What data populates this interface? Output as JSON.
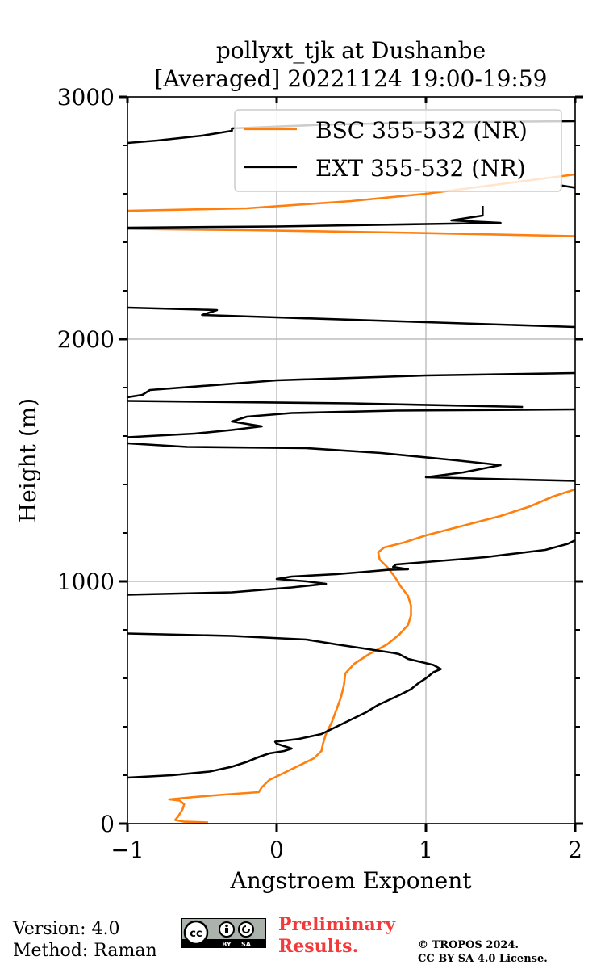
{
  "chart_data": {
    "type": "line",
    "title_line1": "pollyxt_tjk at Dushanbe",
    "title_line2": "[Averaged] 20221124 19:00-19:59",
    "xlabel": "Angstroem Exponent",
    "ylabel": "Height (m)",
    "xlim": [
      -1,
      2
    ],
    "ylim": [
      0,
      3000
    ],
    "x_ticks": [
      -1,
      0,
      1,
      2
    ],
    "x_tick_labels": [
      "−1",
      "0",
      "1",
      "2"
    ],
    "y_ticks": [
      0,
      1000,
      2000,
      3000
    ],
    "y_tick_labels": [
      "0",
      "1000",
      "2000",
      "3000"
    ],
    "grid": true,
    "legend_position": "top-right",
    "series": [
      {
        "name": "BSC 355-532 (NR)",
        "color": "#ff7f0e",
        "points": [
          [
            -0.46,
            5
          ],
          [
            -0.62,
            8
          ],
          [
            -0.68,
            15
          ],
          [
            -0.66,
            30
          ],
          [
            -0.63,
            60
          ],
          [
            -0.62,
            80
          ],
          [
            -0.65,
            95
          ],
          [
            -0.72,
            100
          ],
          [
            -0.55,
            110
          ],
          [
            -0.35,
            120
          ],
          [
            -0.12,
            130
          ],
          [
            -0.1,
            150
          ],
          [
            -0.05,
            180
          ],
          [
            0.05,
            210
          ],
          [
            0.15,
            240
          ],
          [
            0.25,
            270
          ],
          [
            0.3,
            300
          ],
          [
            0.31,
            330
          ],
          [
            0.33,
            370
          ],
          [
            0.37,
            420
          ],
          [
            0.4,
            470
          ],
          [
            0.43,
            520
          ],
          [
            0.45,
            570
          ],
          [
            0.46,
            620
          ],
          [
            0.52,
            660
          ],
          [
            0.62,
            700
          ],
          [
            0.74,
            740
          ],
          [
            0.82,
            780
          ],
          [
            0.88,
            820
          ],
          [
            0.9,
            860
          ],
          [
            0.9,
            900
          ],
          [
            0.88,
            940
          ],
          [
            0.83,
            980
          ],
          [
            0.79,
            1020
          ],
          [
            0.74,
            1060
          ],
          [
            0.69,
            1090
          ],
          [
            0.68,
            1120
          ],
          [
            0.72,
            1140
          ],
          [
            0.85,
            1160
          ],
          [
            1.0,
            1190
          ],
          [
            1.25,
            1230
          ],
          [
            1.5,
            1270
          ],
          [
            1.7,
            1310
          ],
          [
            1.85,
            1350
          ],
          [
            2.0,
            1380
          ]
        ],
        "upper_segments": [
          [
            [
              2.0,
              2425
            ],
            [
              0.8,
              2440
            ],
            [
              -0.2,
              2450
            ],
            [
              -1.0,
              2455
            ]
          ],
          [
            [
              -1.0,
              2530
            ],
            [
              -0.2,
              2540
            ],
            [
              0.5,
              2570
            ],
            [
              1.0,
              2600
            ],
            [
              1.5,
              2640
            ],
            [
              2.0,
              2680
            ]
          ]
        ]
      },
      {
        "name": "EXT 355-532 (NR)",
        "color": "#000000",
        "points": [
          [
            -1.0,
            190
          ],
          [
            -0.7,
            200
          ],
          [
            -0.45,
            215
          ],
          [
            -0.3,
            235
          ],
          [
            -0.2,
            255
          ],
          [
            -0.12,
            275
          ],
          [
            -0.05,
            290
          ],
          [
            0.05,
            300
          ],
          [
            0.1,
            310
          ],
          [
            0.0,
            330
          ],
          [
            -0.01,
            338
          ],
          [
            0.15,
            350
          ],
          [
            0.3,
            370
          ],
          [
            0.4,
            400
          ],
          [
            0.5,
            430
          ],
          [
            0.6,
            460
          ],
          [
            0.68,
            490
          ],
          [
            0.75,
            510
          ],
          [
            0.82,
            530
          ],
          [
            0.9,
            555
          ],
          [
            0.95,
            580
          ],
          [
            1.0,
            600
          ],
          [
            1.05,
            625
          ],
          [
            1.1,
            638
          ],
          [
            1.05,
            655
          ],
          [
            0.88,
            680
          ],
          [
            0.82,
            700
          ],
          [
            0.78,
            705
          ],
          [
            0.4,
            740
          ],
          [
            0.2,
            760
          ],
          [
            -0.3,
            775
          ],
          [
            -1.0,
            785
          ]
        ],
        "extra_segments": [
          [
            [
              -1.0,
              945
            ],
            [
              -0.3,
              955
            ],
            [
              0.1,
              975
            ],
            [
              0.33,
              990
            ],
            [
              0.2,
              1000
            ],
            [
              0.0,
              1010
            ],
            [
              0.1,
              1020
            ],
            [
              0.4,
              1030
            ],
            [
              0.6,
              1040
            ],
            [
              0.75,
              1048
            ],
            [
              0.88,
              1050
            ],
            [
              0.78,
              1060
            ],
            [
              0.8,
              1070
            ],
            [
              1.0,
              1080
            ],
            [
              1.4,
              1100
            ],
            [
              1.6,
              1115
            ],
            [
              1.8,
              1130
            ],
            [
              1.95,
              1155
            ],
            [
              2.0,
              1170
            ]
          ],
          [
            [
              2.0,
              1415
            ],
            [
              1.5,
              1422
            ],
            [
              1.0,
              1430
            ],
            [
              1.25,
              1450
            ],
            [
              1.5,
              1480
            ],
            [
              1.2,
              1500
            ],
            [
              0.7,
              1530
            ],
            [
              0.2,
              1550
            ],
            [
              -0.6,
              1555
            ],
            [
              -1.0,
              1570
            ]
          ],
          [
            [
              -1.0,
              1595
            ],
            [
              -0.55,
              1610
            ],
            [
              -0.3,
              1625
            ],
            [
              -0.1,
              1640
            ],
            [
              -0.3,
              1660
            ],
            [
              -0.2,
              1680
            ],
            [
              0.1,
              1695
            ],
            [
              0.8,
              1705
            ],
            [
              2.0,
              1710
            ]
          ],
          [
            [
              1.65,
              1720
            ],
            [
              0.5,
              1735
            ],
            [
              -1.0,
              1745
            ]
          ],
          [
            [
              -1.0,
              1760
            ],
            [
              -0.9,
              1770
            ],
            [
              -0.85,
              1790
            ],
            [
              0.0,
              1830
            ],
            [
              1.0,
              1850
            ],
            [
              2.0,
              1860
            ]
          ],
          [
            [
              2.0,
              2050
            ],
            [
              1.0,
              2070
            ],
            [
              0.0,
              2090
            ],
            [
              -0.5,
              2100
            ],
            [
              -0.4,
              2120
            ],
            [
              -1.0,
              2130
            ]
          ],
          [
            [
              -1.0,
              2460
            ],
            [
              0.0,
              2465
            ],
            [
              1.0,
              2475
            ],
            [
              1.5,
              2480
            ],
            [
              1.17,
              2490
            ],
            [
              1.38,
              2510
            ],
            [
              1.38,
              2550
            ]
          ],
          [
            [
              -1.0,
              2810
            ],
            [
              -0.8,
              2820
            ],
            [
              -0.5,
              2840
            ],
            [
              -0.3,
              2860
            ],
            [
              -0.3,
              2870
            ],
            [
              0.3,
              2885
            ],
            [
              1.0,
              2895
            ],
            [
              2.0,
              2900
            ]
          ],
          [
            [
              2.0,
              2625
            ],
            [
              1.9,
              2635
            ]
          ]
        ]
      }
    ]
  },
  "footer": {
    "version": "Version: 4.0",
    "method": "Method: Raman",
    "preliminary_line1": "Preliminary",
    "preliminary_line2": "Results.",
    "copyright_line1": "© TROPOS 2024.",
    "copyright_line2": "CC BY SA 4.0 License.",
    "cc_badge": {
      "cc": "cc",
      "by": "BY",
      "sa": "SA"
    }
  }
}
